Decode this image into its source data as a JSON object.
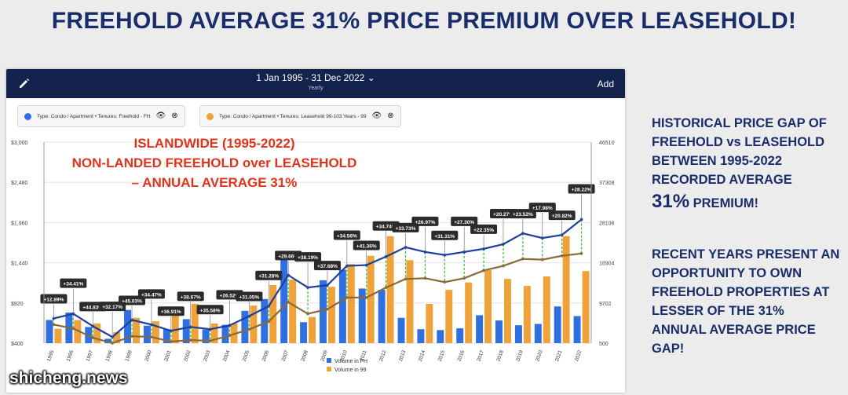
{
  "slide": {
    "title": "FREEHOLD AVERAGE 31% PRICE PREMIUM OVER LEASEHOLD!",
    "side_para1_a": "HISTORICAL PRICE GAP OF",
    "side_para1_b": "FREEHOLD vs LEASEHOLD",
    "side_para1_c": "BETWEEN 1995-2022",
    "side_para1_d": "RECORDED AVERAGE",
    "side_big": "31%",
    "side_big_tail": "PREMIUM!",
    "side_para2_a": "RECENT YEARS PRESENT AN",
    "side_para2_b": "OPPORTUNITY TO OWN",
    "side_para2_c": "FREEHOLD PROPERTIES AT",
    "side_para2_d": "LESSER OF THE 31%",
    "side_para2_e": "ANNUAL AVERAGE PRICE",
    "side_para2_f": "GAP!",
    "watermark": "shicheng.news"
  },
  "toolbar": {
    "date_range": "1 Jan 1995 - 31 Dec 2022",
    "frequency": "Yearly",
    "add_label": "Add"
  },
  "filters": [
    {
      "label": "Type: Condo / Apartment • Tenures: Freehold - FH",
      "color": "#2f6fe0"
    },
    {
      "label": "Type: Condo / Apartment • Tenures: Leasehold 99-103 Years - 99",
      "color": "#f0a23a"
    }
  ],
  "colors": {
    "fh_line": "#1f3f9e",
    "lh_line": "#8a6a38",
    "fh_bar": "#2f6fe0",
    "lh_bar": "#f0a23a",
    "annotation": "#e0331b",
    "gap_dash": "#33bb33"
  },
  "chart_data": {
    "type": "bar",
    "annotation_lines": [
      "ISLANDWIDE (1995-2022)",
      "NON-LANDED FREEHOLD over LEASEHOLD",
      "– ANNUAL AVERAGE 31%"
    ],
    "left_axis_ticks": [
      "$3,000",
      "$2,480",
      "$1,960",
      "$1,440",
      "$920",
      "$400"
    ],
    "left_ylim": [
      400,
      3000
    ],
    "right_axis_ticks": [
      "46510",
      "37308",
      "28106",
      "18904",
      "9702",
      "500"
    ],
    "right_ylim": [
      500,
      46510
    ],
    "categories": [
      "1995",
      "1996",
      "1997",
      "1998",
      "1999",
      "2000",
      "2001",
      "2002",
      "2003",
      "2004",
      "2005",
      "2006",
      "2007",
      "2008",
      "2009",
      "2010",
      "2011",
      "2012",
      "2013",
      "2014",
      "2015",
      "2016",
      "2017",
      "2018",
      "2019",
      "2020",
      "2021",
      "2022"
    ],
    "series": [
      {
        "values": [
          720,
          780,
          620,
          480,
          700,
          640,
          560,
          610,
          580,
          630,
          750,
          880,
          1280,
          1120,
          1150,
          1400,
          1410,
          1520,
          1640,
          1580,
          1540,
          1580,
          1620,
          1680,
          1820,
          1760,
          1800,
          2000
        ]
      },
      {
        "values": [
          640,
          590,
          470,
          400,
          490,
          480,
          420,
          440,
          430,
          500,
          580,
          680,
          930,
          780,
          840,
          990,
          990,
          1120,
          1230,
          1240,
          1190,
          1240,
          1340,
          1400,
          1490,
          1480,
          1530,
          1560
        ]
      },
      {
        "name": "Volume in FH",
        "values": [
          5800,
          7500,
          4200,
          1500,
          8100,
          4500,
          3700,
          6000,
          3600,
          4700,
          7900,
          10600,
          19600,
          5300,
          14900,
          17300,
          13000,
          12700,
          6300,
          3700,
          3500,
          3900,
          6900,
          5700,
          4600,
          4900,
          8900,
          6700
        ]
      },
      {
        "name": "Volume in 99",
        "values": [
          3800,
          5800,
          5000,
          3000,
          6300,
          5500,
          6800,
          9500,
          5000,
          5000,
          9100,
          13800,
          15000,
          6500,
          13400,
          18600,
          20500,
          25000,
          19500,
          9500,
          12700,
          14400,
          17200,
          15200,
          13600,
          15800,
          25000,
          17000
        ]
      }
    ],
    "premium_labels": [
      "+12.89%",
      "+34.41%",
      "+44.83%",
      "+32.17%",
      "+45.03%",
      "+34.47%",
      "+36.91%",
      "+38.67%",
      "+35.58%",
      "+26.52%",
      "+31.05%",
      "+31.28%",
      "+29.66%",
      "+38.19%",
      "+37.68%",
      "+34.56%",
      "+41.36%",
      "+34.74%",
      "+33.73%",
      "+26.97%",
      "+31.31%",
      "+27.30%",
      "+22.35%",
      "+20.27%",
      "+23.52%",
      "+17.98%",
      "+20.82%",
      "+28.22%"
    ],
    "legend_position": "bottom-center",
    "grid": true
  }
}
